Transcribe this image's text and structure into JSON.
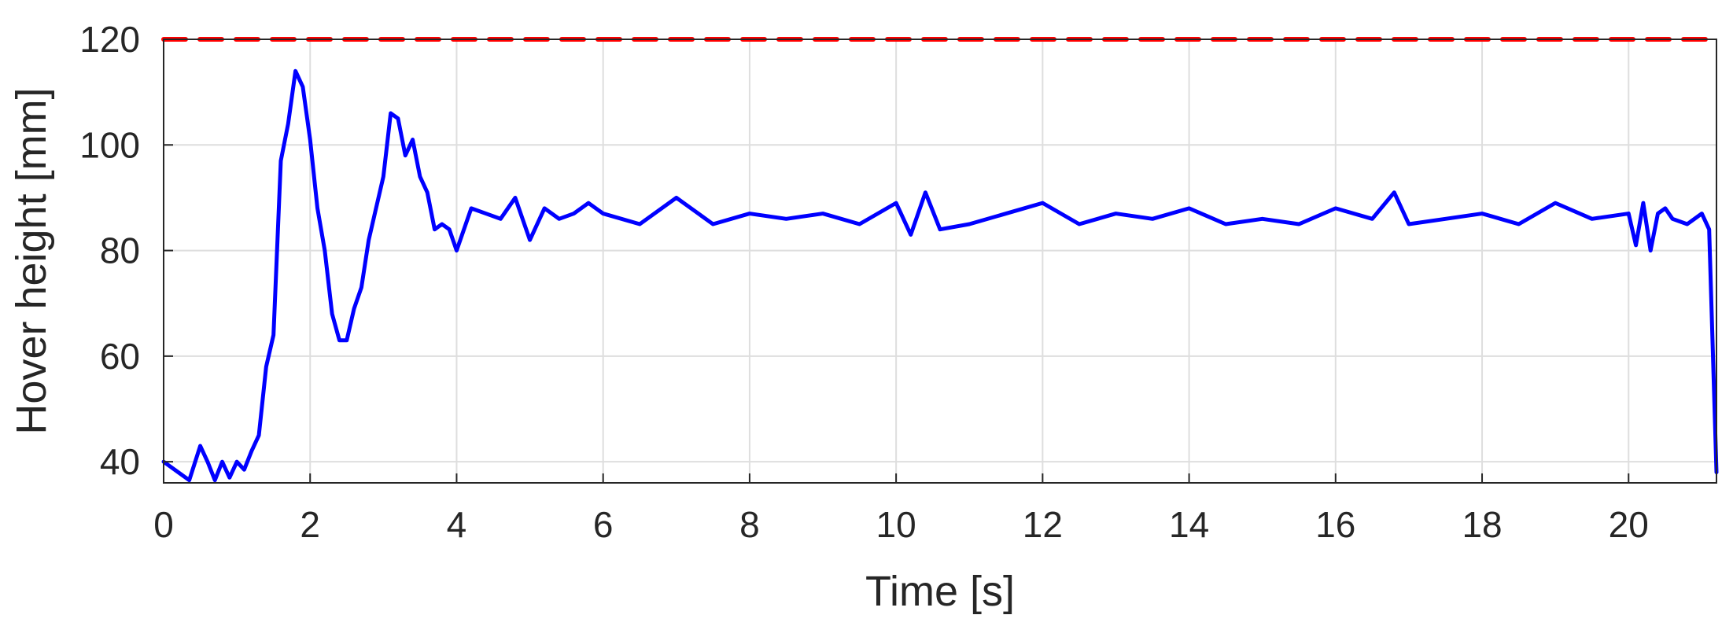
{
  "chart_data": {
    "type": "line",
    "title": "",
    "xlabel": "Time [s]",
    "ylabel": "Hover height [mm]",
    "xlim": [
      0,
      21.2
    ],
    "ylim": [
      36,
      120
    ],
    "xticks": [
      0,
      2,
      4,
      6,
      8,
      10,
      12,
      14,
      16,
      18,
      20
    ],
    "yticks": [
      40,
      60,
      80,
      100,
      120
    ],
    "grid": true,
    "legend": "none",
    "series": [
      {
        "color": "#0000ff",
        "line_style": "solid",
        "x": [
          0,
          0.2,
          0.35,
          0.5,
          0.6,
          0.7,
          0.8,
          0.9,
          1.0,
          1.1,
          1.2,
          1.3,
          1.4,
          1.5,
          1.6,
          1.7,
          1.8,
          1.9,
          2.0,
          2.1,
          2.2,
          2.3,
          2.4,
          2.5,
          2.6,
          2.7,
          2.8,
          2.9,
          3.0,
          3.1,
          3.2,
          3.3,
          3.4,
          3.5,
          3.6,
          3.7,
          3.8,
          3.9,
          4.0,
          4.2,
          4.4,
          4.6,
          4.8,
          5.0,
          5.2,
          5.4,
          5.6,
          5.8,
          6.0,
          6.5,
          7.0,
          7.5,
          8.0,
          8.5,
          9.0,
          9.5,
          10.0,
          10.2,
          10.4,
          10.6,
          11.0,
          11.5,
          12.0,
          12.5,
          13.0,
          13.5,
          14.0,
          14.5,
          15.0,
          15.5,
          16.0,
          16.5,
          16.8,
          17.0,
          17.5,
          18.0,
          18.5,
          19.0,
          19.5,
          20.0,
          20.1,
          20.2,
          20.3,
          20.4,
          20.5,
          20.6,
          20.8,
          21.0,
          21.1,
          21.2
        ],
        "y": [
          40,
          38,
          36.5,
          43,
          40,
          36.5,
          40,
          37,
          40,
          38.5,
          42,
          45,
          58,
          64,
          97,
          104,
          114,
          111,
          101,
          88,
          80,
          68,
          63,
          63,
          69,
          73,
          82,
          88,
          94,
          106,
          105,
          98,
          101,
          94,
          91,
          84,
          85,
          84,
          80,
          88,
          87,
          86,
          90,
          82,
          88,
          86,
          87,
          89,
          87,
          85,
          90,
          85,
          87,
          86,
          87,
          85,
          89,
          83,
          91,
          84,
          85,
          87,
          89,
          85,
          87,
          86,
          88,
          85,
          86,
          85,
          88,
          86,
          91,
          85,
          86,
          87,
          85,
          89,
          86,
          87,
          81,
          89,
          80,
          87,
          88,
          86,
          85,
          87,
          84,
          38
        ]
      },
      {
        "color": "#ff0000",
        "line_style": "dashed",
        "x": [
          0,
          21.2
        ],
        "y": [
          120,
          120
        ]
      }
    ]
  }
}
